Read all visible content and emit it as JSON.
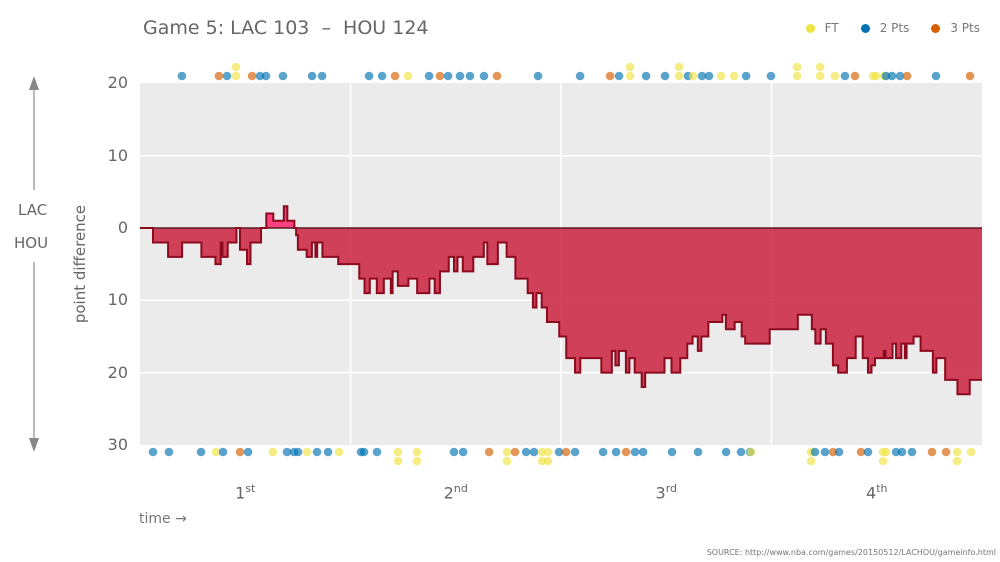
{
  "title": "Game 5: LAC 103  –  HOU 124",
  "legend": [
    {
      "label": "FT",
      "color": "#f0e442"
    },
    {
      "label": "2 Pts",
      "color": "#0072b2"
    },
    {
      "label": "3 Pts",
      "color": "#d55e00"
    }
  ],
  "side_labels": {
    "top": "LAC",
    "bottom": "HOU"
  },
  "source": "SOURCE: http://www.nba.com/games/20150512/LACHOU/gameinfo.html",
  "chart_data": {
    "type": "area",
    "xlabel": "time →",
    "ylabel": "point difference",
    "xlim": [
      0,
      48
    ],
    "ylim": [
      -30,
      20
    ],
    "grid": true,
    "legend_position": "top-right",
    "colors": {
      "lac_lead": "#ff2d72",
      "hou_lead": "#c8102e",
      "line": "#8b0a1e",
      "ft": "#f0e442",
      "two": "#0072b2",
      "three": "#d55e00"
    },
    "yticks": [
      {
        "value": 20,
        "label": "20"
      },
      {
        "value": 10,
        "label": "10"
      },
      {
        "value": 0,
        "label": "0"
      },
      {
        "value": -10,
        "label": "10"
      },
      {
        "value": -20,
        "label": "20"
      },
      {
        "value": -30,
        "label": "30"
      }
    ],
    "quarters": [
      {
        "num": "1",
        "sup": "st",
        "mid": 6
      },
      {
        "num": "2",
        "sup": "nd",
        "mid": 18
      },
      {
        "num": "3",
        "sup": "rd",
        "mid": 30
      },
      {
        "num": "4",
        "sup": "th",
        "mid": 42
      }
    ],
    "differential": [
      [
        0,
        0
      ],
      [
        0.74,
        -2
      ],
      [
        1.6,
        -4
      ],
      [
        2.4,
        -2
      ],
      [
        3.5,
        -4
      ],
      [
        4.3,
        -5
      ],
      [
        4.6,
        -2
      ],
      [
        4.7,
        -4
      ],
      [
        5.0,
        -2
      ],
      [
        5.5,
        0
      ],
      [
        5.7,
        -3
      ],
      [
        6.1,
        -5
      ],
      [
        6.3,
        -2
      ],
      [
        6.9,
        0
      ],
      [
        7.2,
        2
      ],
      [
        7.6,
        1
      ],
      [
        8.2,
        3
      ],
      [
        8.4,
        1
      ],
      [
        8.8,
        0
      ],
      [
        8.9,
        -1
      ],
      [
        9.0,
        -3
      ],
      [
        9.5,
        -4
      ],
      [
        9.8,
        -2
      ],
      [
        10.0,
        -4
      ],
      [
        10.1,
        -2
      ],
      [
        10.4,
        -4
      ],
      [
        10.7,
        -4
      ],
      [
        11.3,
        -5
      ],
      [
        12.5,
        -7
      ],
      [
        12.8,
        -9
      ],
      [
        13.1,
        -7
      ],
      [
        13.5,
        -9
      ],
      [
        13.9,
        -7
      ],
      [
        14.3,
        -9
      ],
      [
        14.4,
        -6
      ],
      [
        14.7,
        -8
      ],
      [
        15.3,
        -7
      ],
      [
        15.8,
        -9
      ],
      [
        16.5,
        -7
      ],
      [
        16.8,
        -9
      ],
      [
        17.1,
        -6
      ],
      [
        17.6,
        -4
      ],
      [
        17.9,
        -6
      ],
      [
        18.1,
        -4
      ],
      [
        18.4,
        -6
      ],
      [
        19.0,
        -4
      ],
      [
        19.6,
        -2
      ],
      [
        19.8,
        -5
      ],
      [
        20.4,
        -2
      ],
      [
        20.9,
        -4
      ],
      [
        21.4,
        -7
      ],
      [
        22.1,
        -9
      ],
      [
        22.4,
        -11
      ],
      [
        22.6,
        -9
      ],
      [
        22.9,
        -11
      ],
      [
        23.2,
        -13
      ],
      [
        23.9,
        -15
      ],
      [
        24.3,
        -18
      ],
      [
        24.8,
        -20
      ],
      [
        25.1,
        -18
      ],
      [
        26.3,
        -20
      ],
      [
        26.9,
        -17
      ],
      [
        27.1,
        -19
      ],
      [
        27.3,
        -17
      ],
      [
        27.7,
        -20
      ],
      [
        27.9,
        -18
      ],
      [
        28.2,
        -20
      ],
      [
        28.6,
        -22
      ],
      [
        28.8,
        -20
      ],
      [
        29.9,
        -18
      ],
      [
        30.3,
        -20
      ],
      [
        30.8,
        -18
      ],
      [
        31.2,
        -16
      ],
      [
        31.5,
        -15
      ],
      [
        31.8,
        -17
      ],
      [
        32.0,
        -15
      ],
      [
        32.4,
        -13
      ],
      [
        33.2,
        -12
      ],
      [
        33.4,
        -14
      ],
      [
        33.9,
        -13
      ],
      [
        34.3,
        -15
      ],
      [
        34.5,
        -16
      ],
      [
        35.9,
        -14
      ],
      [
        37.5,
        -12
      ],
      [
        38.3,
        -14
      ],
      [
        38.5,
        -16
      ],
      [
        38.8,
        -14
      ],
      [
        39.1,
        -16
      ],
      [
        39.5,
        -19
      ],
      [
        39.8,
        -20
      ],
      [
        40.3,
        -18
      ],
      [
        40.8,
        -15
      ],
      [
        41.2,
        -18
      ],
      [
        41.5,
        -20
      ],
      [
        41.7,
        -19
      ],
      [
        41.9,
        -18
      ],
      [
        42.4,
        -17
      ],
      [
        42.5,
        -18
      ],
      [
        42.9,
        -16
      ],
      [
        43.1,
        -18
      ],
      [
        43.4,
        -16
      ],
      [
        43.6,
        -18
      ],
      [
        43.7,
        -16
      ],
      [
        44.1,
        -15
      ],
      [
        44.5,
        -17
      ],
      [
        45.2,
        -20
      ],
      [
        45.4,
        -18
      ],
      [
        45.9,
        -21
      ],
      [
        46.6,
        -23
      ],
      [
        47.3,
        -21
      ],
      [
        48,
        -21
      ]
    ],
    "lac_scores": [
      [
        2.39,
        "2"
      ],
      [
        4.5,
        "3"
      ],
      [
        4.96,
        "2"
      ],
      [
        5.47,
        "FT"
      ],
      [
        5.47,
        "FT"
      ],
      [
        6.39,
        "3"
      ],
      [
        6.84,
        "2"
      ],
      [
        7.18,
        "2"
      ],
      [
        8.15,
        "2"
      ],
      [
        9.81,
        "2"
      ],
      [
        10.38,
        "2"
      ],
      [
        13.06,
        "2"
      ],
      [
        13.8,
        "2"
      ],
      [
        14.54,
        "3"
      ],
      [
        15.28,
        "FT"
      ],
      [
        16.48,
        "2"
      ],
      [
        17.1,
        "3"
      ],
      [
        17.56,
        "2"
      ],
      [
        18.24,
        "2"
      ],
      [
        18.81,
        "2"
      ],
      [
        19.61,
        "2"
      ],
      [
        20.35,
        "3"
      ],
      [
        22.69,
        "2"
      ],
      [
        25.09,
        "2"
      ],
      [
        26.8,
        "3"
      ],
      [
        27.31,
        "2"
      ],
      [
        27.94,
        "FT"
      ],
      [
        27.94,
        "FT"
      ],
      [
        28.85,
        "2"
      ],
      [
        29.93,
        "2"
      ],
      [
        30.73,
        "FT"
      ],
      [
        30.73,
        "FT"
      ],
      [
        31.24,
        "2"
      ],
      [
        31.53,
        "FT"
      ],
      [
        32.04,
        "2"
      ],
      [
        32.44,
        "2"
      ],
      [
        33.13,
        "FT"
      ],
      [
        33.87,
        "FT"
      ],
      [
        34.55,
        "2"
      ],
      [
        35.97,
        "2"
      ],
      [
        37.46,
        "FT"
      ],
      [
        37.46,
        "FT"
      ],
      [
        38.77,
        "FT"
      ],
      [
        38.77,
        "FT"
      ],
      [
        39.62,
        "FT"
      ],
      [
        40.19,
        "2"
      ],
      [
        40.76,
        "3"
      ],
      [
        41.79,
        "FT"
      ],
      [
        41.96,
        "FT"
      ],
      [
        42.42,
        "FT"
      ],
      [
        42.53,
        "2"
      ],
      [
        42.87,
        "2"
      ],
      [
        43.33,
        "2"
      ],
      [
        43.73,
        "3"
      ],
      [
        45.38,
        "2"
      ],
      [
        47.32,
        "3"
      ]
    ],
    "hou_scores": [
      [
        0.74,
        "2"
      ],
      [
        1.65,
        "2"
      ],
      [
        3.48,
        "2"
      ],
      [
        4.33,
        "FT"
      ],
      [
        4.73,
        "2"
      ],
      [
        5.7,
        "3"
      ],
      [
        6.16,
        "2"
      ],
      [
        7.58,
        "FT"
      ],
      [
        8.38,
        "2"
      ],
      [
        8.78,
        "2"
      ],
      [
        9.01,
        "2"
      ],
      [
        9.52,
        "FT"
      ],
      [
        10.09,
        "2"
      ],
      [
        10.72,
        "2"
      ],
      [
        11.35,
        "FT"
      ],
      [
        12.6,
        "2"
      ],
      [
        12.77,
        "2"
      ],
      [
        13.51,
        "2"
      ],
      [
        14.71,
        "FT"
      ],
      [
        14.71,
        "FT"
      ],
      [
        15.79,
        "FT"
      ],
      [
        15.79,
        "FT"
      ],
      [
        17.9,
        "2"
      ],
      [
        18.42,
        "2"
      ],
      [
        19.9,
        "3"
      ],
      [
        20.92,
        "FT"
      ],
      [
        20.92,
        "FT"
      ],
      [
        21.38,
        "3"
      ],
      [
        22.01,
        "2"
      ],
      [
        22.46,
        "2"
      ],
      [
        22.92,
        "FT"
      ],
      [
        22.92,
        "FT"
      ],
      [
        23.26,
        "FT"
      ],
      [
        23.26,
        "FT"
      ],
      [
        23.89,
        "2"
      ],
      [
        24.29,
        "3"
      ],
      [
        24.8,
        "2"
      ],
      [
        26.4,
        "2"
      ],
      [
        27.14,
        "2"
      ],
      [
        27.71,
        "3"
      ],
      [
        28.22,
        "2"
      ],
      [
        28.68,
        "2"
      ],
      [
        30.33,
        "2"
      ],
      [
        31.81,
        "2"
      ],
      [
        33.41,
        "2"
      ],
      [
        34.26,
        "2"
      ],
      [
        34.78,
        "2"
      ],
      [
        34.83,
        "FT"
      ],
      [
        38.26,
        "FT"
      ],
      [
        38.26,
        "FT"
      ],
      [
        38.48,
        "2"
      ],
      [
        39.05,
        "2"
      ],
      [
        39.51,
        "3"
      ],
      [
        39.85,
        "2"
      ],
      [
        41.1,
        "3"
      ],
      [
        41.5,
        "2"
      ],
      [
        42.36,
        "FT"
      ],
      [
        42.36,
        "FT"
      ],
      [
        42.53,
        "FT"
      ],
      [
        43.1,
        "2"
      ],
      [
        43.44,
        "2"
      ],
      [
        44.01,
        "2"
      ],
      [
        45.15,
        "3"
      ],
      [
        45.95,
        "3"
      ],
      [
        46.58,
        "FT"
      ],
      [
        46.58,
        "FT"
      ],
      [
        47.38,
        "FT"
      ]
    ]
  }
}
